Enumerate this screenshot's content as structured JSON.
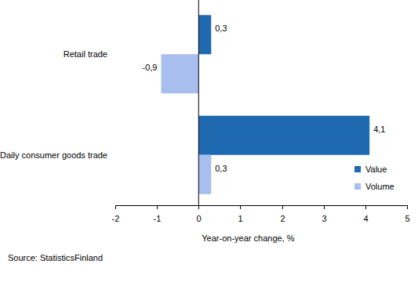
{
  "chart_data": {
    "type": "bar",
    "orientation": "horizontal",
    "categories": [
      "Retail trade",
      "Daily consumer goods trade"
    ],
    "series": [
      {
        "name": "Value",
        "color": "#1f69b1",
        "values": [
          0.3,
          4.1
        ],
        "value_labels": [
          "0,3",
          "4,1"
        ]
      },
      {
        "name": "Volume",
        "color": "#a8beee",
        "values": [
          -0.9,
          0.3
        ],
        "value_labels": [
          "-0,9",
          "0,3"
        ]
      }
    ],
    "xlabel": "Year-on-year change, %",
    "xlim": [
      -2,
      5
    ],
    "xticks": [
      -2,
      -1,
      0,
      1,
      2,
      3,
      4,
      5
    ],
    "grid": false,
    "legend": "lower right",
    "data_labels": true,
    "annotations": [
      "Source: StatisticsFinland"
    ]
  }
}
